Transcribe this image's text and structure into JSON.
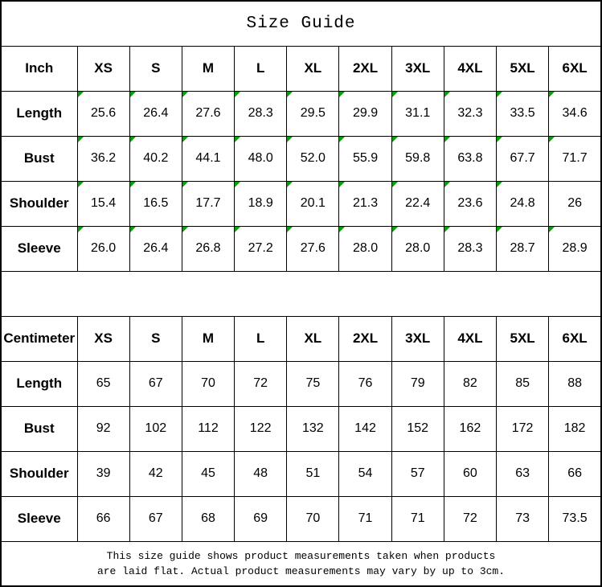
{
  "title": "Size Guide",
  "footer": {
    "line1": "This size guide shows product measurements taken when products",
    "line2": "are laid flat. Actual product measurements may vary by up to 3cm."
  },
  "colors": {
    "marker_green": "#0b9e0b",
    "border": "#000000",
    "text": "#000000",
    "background": "#ffffff"
  },
  "tables": [
    {
      "unit_label": "Inch",
      "sizes": [
        "XS",
        "S",
        "M",
        "L",
        "XL",
        "2XL",
        "3XL",
        "4XL",
        "5XL",
        "6XL"
      ],
      "rows": [
        {
          "label": "Length",
          "values": [
            "25.6",
            "26.4",
            "27.6",
            "28.3",
            "29.5",
            "29.9",
            "31.1",
            "32.3",
            "33.5",
            "34.6"
          ],
          "marks": [
            true,
            true,
            true,
            true,
            true,
            true,
            true,
            true,
            true,
            true
          ]
        },
        {
          "label": "Bust",
          "values": [
            "36.2",
            "40.2",
            "44.1",
            "48.0",
            "52.0",
            "55.9",
            "59.8",
            "63.8",
            "67.7",
            "71.7"
          ],
          "marks": [
            true,
            true,
            true,
            true,
            true,
            true,
            true,
            true,
            true,
            true
          ]
        },
        {
          "label": "Shoulder",
          "values": [
            "15.4",
            "16.5",
            "17.7",
            "18.9",
            "20.1",
            "21.3",
            "22.4",
            "23.6",
            "24.8",
            "26"
          ],
          "marks": [
            true,
            true,
            true,
            true,
            true,
            true,
            true,
            true,
            true,
            false
          ]
        },
        {
          "label": "Sleeve",
          "values": [
            "26.0",
            "26.4",
            "26.8",
            "27.2",
            "27.6",
            "28.0",
            "28.0",
            "28.3",
            "28.7",
            "28.9"
          ],
          "marks": [
            true,
            true,
            true,
            true,
            true,
            true,
            true,
            true,
            true,
            true
          ]
        }
      ]
    },
    {
      "unit_label": "Centimeter",
      "sizes": [
        "XS",
        "S",
        "M",
        "L",
        "XL",
        "2XL",
        "3XL",
        "4XL",
        "5XL",
        "6XL"
      ],
      "rows": [
        {
          "label": "Length",
          "values": [
            "65",
            "67",
            "70",
            "72",
            "75",
            "76",
            "79",
            "82",
            "85",
            "88"
          ],
          "marks": [
            false,
            false,
            false,
            false,
            false,
            false,
            false,
            false,
            false,
            false
          ]
        },
        {
          "label": "Bust",
          "values": [
            "92",
            "102",
            "112",
            "122",
            "132",
            "142",
            "152",
            "162",
            "172",
            "182"
          ],
          "marks": [
            false,
            false,
            false,
            false,
            false,
            false,
            false,
            false,
            false,
            false
          ]
        },
        {
          "label": "Shoulder",
          "values": [
            "39",
            "42",
            "45",
            "48",
            "51",
            "54",
            "57",
            "60",
            "63",
            "66"
          ],
          "marks": [
            false,
            false,
            false,
            false,
            false,
            false,
            false,
            false,
            false,
            false
          ]
        },
        {
          "label": "Sleeve",
          "values": [
            "66",
            "67",
            "68",
            "69",
            "70",
            "71",
            "71",
            "72",
            "73",
            "73.5"
          ],
          "marks": [
            false,
            false,
            false,
            false,
            false,
            false,
            false,
            false,
            false,
            false
          ]
        }
      ]
    }
  ]
}
